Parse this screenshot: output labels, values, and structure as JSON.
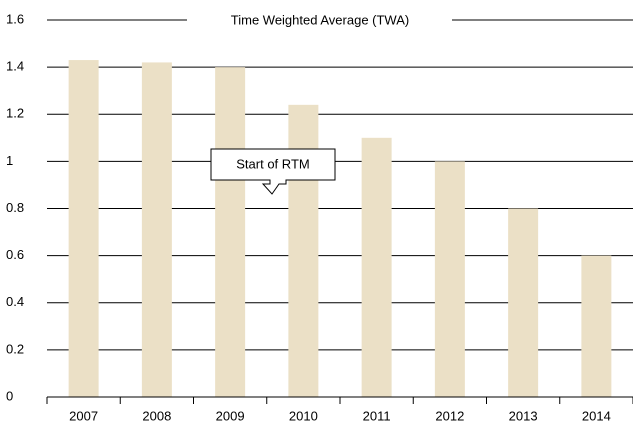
{
  "chart_data": {
    "type": "bar",
    "title": "Time Weighted Average (TWA)",
    "categories": [
      "2007",
      "2008",
      "2009",
      "2010",
      "2011",
      "2012",
      "2013",
      "2014"
    ],
    "values": [
      1.43,
      1.42,
      1.4,
      1.24,
      1.1,
      1.0,
      0.8,
      0.6
    ],
    "color": "#ebe0c6",
    "ylim": [
      0,
      1.6
    ],
    "yticks": [
      0,
      0.2,
      0.4,
      0.6,
      0.8,
      1,
      1.2,
      1.4,
      1.6
    ],
    "grid": true,
    "annotation": "Start of RTM"
  }
}
